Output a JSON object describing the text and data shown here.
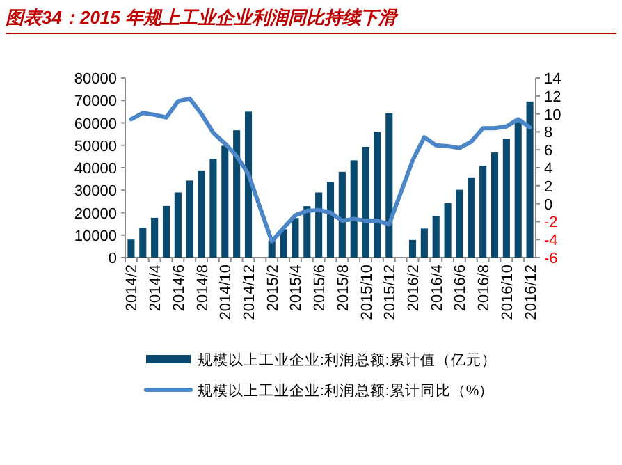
{
  "chart_data": {
    "type": "bar",
    "title": "图表34：2015 年规上工业企业利润同比持续下滑",
    "categories": [
      "2014/2",
      null,
      "2014/4",
      null,
      "2014/6",
      null,
      "2014/8",
      null,
      "2014/10",
      null,
      "2014/12",
      null,
      "2015/2",
      null,
      "2015/4",
      null,
      "2015/6",
      null,
      "2015/8",
      null,
      "2015/10",
      null,
      "2015/12",
      null,
      "2016/2",
      null,
      "2016/4",
      null,
      "2016/6",
      null,
      "2016/8",
      null,
      "2016/10",
      null,
      "2016/12"
    ],
    "series": [
      {
        "name": "规模以上工业企业:利润总额:累计值（亿元）",
        "color": "#0b4a6f",
        "values": [
          8000,
          13200,
          17700,
          23000,
          29000,
          34300,
          38800,
          44000,
          49800,
          56700,
          65000,
          null,
          7500,
          12600,
          17600,
          22900,
          29000,
          33700,
          38200,
          43300,
          49300,
          56100,
          64300,
          null,
          7800,
          12900,
          18500,
          24200,
          30200,
          35700,
          40800,
          46800,
          52800,
          60500,
          69500
        ]
      },
      {
        "name": "规模以上工业企业:利润总额:累计同比（%）",
        "type": "line",
        "axis": "y2",
        "color": "#4a86c8",
        "values": [
          9.4,
          10.1,
          9.9,
          9.6,
          11.4,
          11.7,
          10.0,
          7.9,
          6.7,
          5.3,
          3.3,
          null,
          -4.2,
          -2.7,
          -1.3,
          -0.8,
          -0.7,
          -1.0,
          -1.9,
          -1.7,
          -1.9,
          -1.9,
          -2.3,
          null,
          4.8,
          7.4,
          6.5,
          6.4,
          6.2,
          6.9,
          8.4,
          8.4,
          8.6,
          9.4,
          8.5
        ]
      }
    ],
    "ylim": [
      0,
      80000
    ],
    "yticks": [
      0,
      10000,
      20000,
      30000,
      40000,
      50000,
      60000,
      70000,
      80000
    ],
    "y2lim": [
      -6,
      14
    ],
    "y2ticks": [
      -6,
      -4,
      -2,
      0,
      2,
      4,
      6,
      8,
      10,
      12,
      14
    ],
    "legend": "bottom",
    "grid": false
  }
}
